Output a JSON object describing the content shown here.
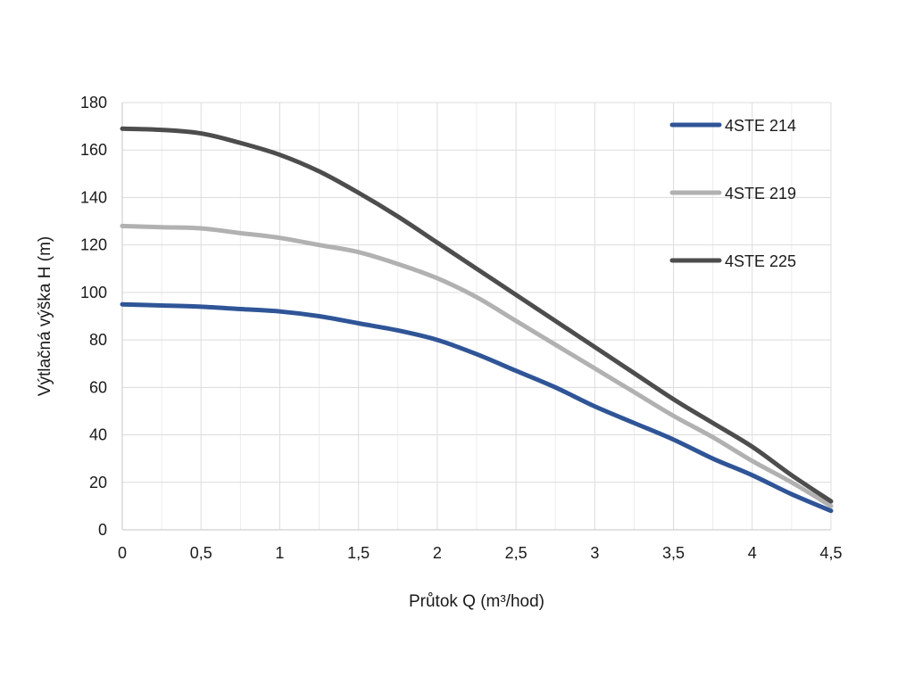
{
  "chart_data": {
    "type": "line",
    "title": "",
    "xlabel": "Průtok Q (m³/hod)",
    "ylabel": "Výtlačná výška H (m)",
    "xlim": [
      0,
      4.5
    ],
    "ylim": [
      0,
      180
    ],
    "x_ticks": [
      "0",
      "0,5",
      "1",
      "1,5",
      "2",
      "2,5",
      "3",
      "3,5",
      "4",
      "4,5"
    ],
    "y_ticks": [
      "0",
      "20",
      "40",
      "60",
      "80",
      "100",
      "120",
      "140",
      "160",
      "180"
    ],
    "grid": true,
    "legend_position": "top-right",
    "series": [
      {
        "name": "4STE 214",
        "color": "#2f5597",
        "x": [
          0,
          0.25,
          0.5,
          0.75,
          1.0,
          1.25,
          1.5,
          1.75,
          2.0,
          2.25,
          2.5,
          2.75,
          3.0,
          3.25,
          3.5,
          3.75,
          4.0,
          4.25,
          4.5
        ],
        "y": [
          95,
          94.5,
          94,
          93,
          92,
          90,
          87,
          84,
          80,
          74,
          67,
          60,
          52,
          45,
          38,
          30,
          23,
          15,
          8
        ]
      },
      {
        "name": "4STE 219",
        "color": "#b1b1b1",
        "x": [
          0,
          0.25,
          0.5,
          0.75,
          1.0,
          1.25,
          1.5,
          1.75,
          2.0,
          2.25,
          2.5,
          2.75,
          3.0,
          3.25,
          3.5,
          3.75,
          4.0,
          4.25,
          4.5
        ],
        "y": [
          128,
          127.5,
          127,
          125,
          123,
          120,
          117,
          112,
          106,
          98,
          88,
          78,
          68,
          58,
          48,
          39,
          29,
          20,
          10
        ]
      },
      {
        "name": "4STE 225",
        "color": "#4d4d4d",
        "x": [
          0,
          0.25,
          0.5,
          0.75,
          1.0,
          1.25,
          1.5,
          1.75,
          2.0,
          2.25,
          2.5,
          2.75,
          3.0,
          3.25,
          3.5,
          3.75,
          4.0,
          4.25,
          4.5
        ],
        "y": [
          169,
          168.5,
          167,
          163,
          158,
          151,
          142,
          132,
          121,
          110,
          99,
          88,
          77,
          66,
          55,
          45,
          35,
          23,
          12
        ]
      }
    ]
  }
}
